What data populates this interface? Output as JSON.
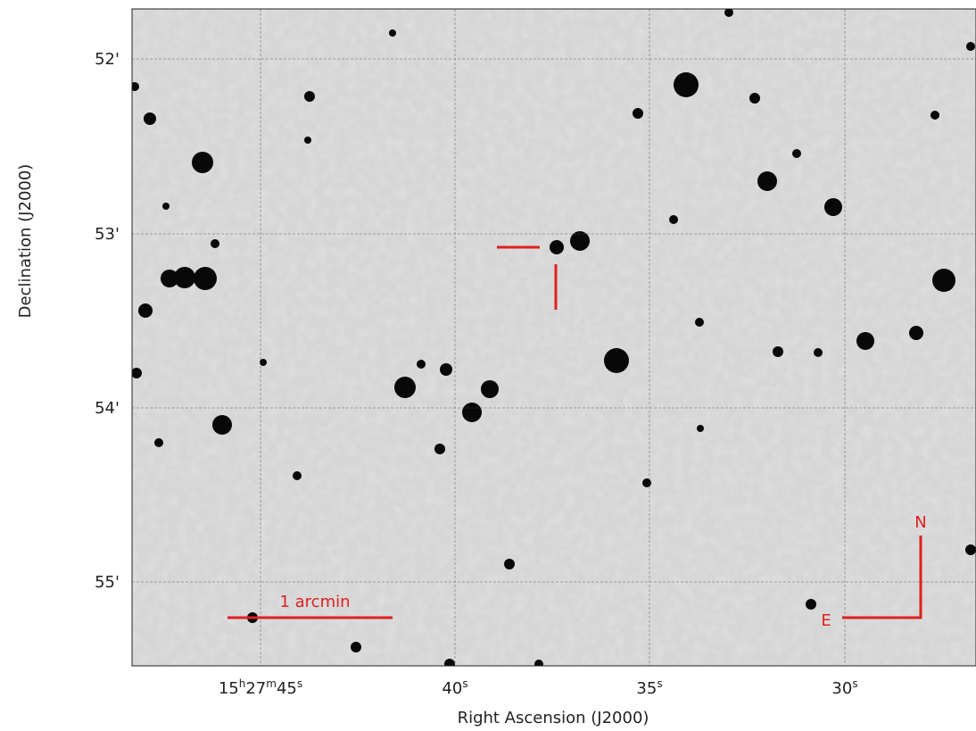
{
  "x_axis": {
    "label": "Right Ascension (J2000)",
    "ticks": [
      [
        "15",
        "h",
        "27",
        "m",
        "45",
        "s"
      ],
      [
        "40",
        "s"
      ],
      [
        "35",
        "s"
      ],
      [
        "30",
        "s"
      ]
    ]
  },
  "y_axis": {
    "label": "Declination (J2000)",
    "ticks": [
      "52'",
      "53'",
      "54'",
      "55'"
    ]
  },
  "annotations": {
    "scale_bar": "1 arcmin",
    "north": "N",
    "east": "E"
  }
}
